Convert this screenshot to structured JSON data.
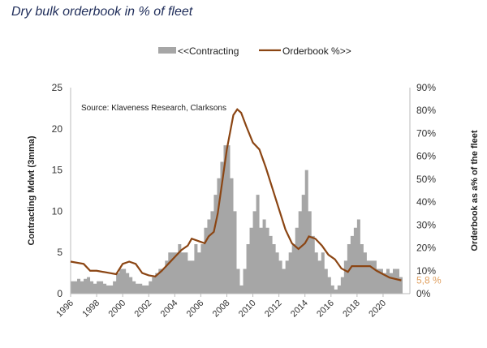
{
  "title": "Dry bulk orderbook in % of fleet",
  "chart_data": {
    "type": "area+line",
    "title": "Dry bulk orderbook in % of fleet",
    "source_note": "Source: Klaveness Research, Clarksons",
    "ylabel": "Contracting Mdwt (3mma)",
    "y2label": "Orderbook as  a% of the fleet",
    "ylim": [
      0,
      25
    ],
    "y2lim": [
      0,
      90
    ],
    "yticks": [
      "0",
      "5",
      "10",
      "15",
      "20",
      "25"
    ],
    "y2ticks": [
      "0%",
      "10%",
      "20%",
      "30%",
      "40%",
      "50%",
      "60%",
      "70%",
      "80%",
      "90%"
    ],
    "xticks": [
      "1996",
      "1998",
      "2000",
      "2002",
      "2004",
      "2006",
      "2008",
      "2010",
      "2012",
      "2014",
      "2016",
      "2018",
      "2020"
    ],
    "legend": {
      "position": "top",
      "entries": [
        "<<Contracting",
        "Orderbook %>>"
      ]
    },
    "end_label": "5,8 %",
    "colors": {
      "contracting": "#a6a6a6",
      "orderbook": "#8b4513",
      "end_label": "#e0a060",
      "title": "#1f2d5a"
    },
    "series": [
      {
        "name": "<<Contracting",
        "axis": "left",
        "x_start": 1996,
        "step_years": 0.25,
        "values": [
          1.5,
          1.5,
          1.8,
          1.5,
          1.8,
          2,
          1.5,
          1.2,
          1.5,
          1.5,
          1.2,
          1,
          1,
          1.5,
          2.5,
          3,
          3,
          2.5,
          2,
          1.5,
          1.2,
          1.2,
          1,
          1,
          1.5,
          2,
          2.5,
          3,
          3,
          4,
          5,
          5,
          5,
          6,
          5,
          5,
          4,
          4,
          6,
          5,
          6,
          8,
          9,
          10,
          12,
          14,
          16,
          18,
          18,
          14,
          10,
          3,
          1,
          3,
          6,
          8,
          10,
          12,
          8,
          9,
          8,
          7,
          6,
          5,
          4,
          3,
          4,
          5,
          6,
          8,
          10,
          12,
          15,
          10,
          7,
          5,
          4,
          5,
          3,
          2,
          1,
          0.5,
          1,
          2,
          4,
          6,
          7,
          8,
          9,
          6,
          5,
          4,
          4,
          4,
          3,
          3,
          2.5,
          3,
          2.5,
          3,
          3,
          2
        ]
      },
      {
        "name": "Orderbook %>>",
        "axis": "right",
        "x": [
          1996,
          1997,
          1997.5,
          1998,
          1999,
          1999.5,
          2000,
          2000.5,
          2001,
          2001.5,
          2002,
          2002.5,
          2003,
          2003.5,
          2004,
          2004.5,
          2005,
          2005.3,
          2005.8,
          2006.3,
          2006.6,
          2007,
          2007.3,
          2007.6,
          2008,
          2008.5,
          2008.8,
          2009.1,
          2009.5,
          2010,
          2010.5,
          2011,
          2011.5,
          2012,
          2012.5,
          2013,
          2013.5,
          2014,
          2014.3,
          2014.8,
          2015.3,
          2015.8,
          2016.3,
          2016.8,
          2017.3,
          2017.6,
          2018,
          2019,
          2019.5,
          2020,
          2020.5,
          2021.4
        ],
        "values": [
          14,
          13,
          10,
          10,
          9,
          8.5,
          13,
          14,
          13,
          9,
          8,
          7.5,
          10,
          13,
          16,
          19,
          21,
          24,
          23,
          22,
          25,
          27,
          35,
          47,
          63,
          78,
          80.5,
          79,
          73,
          66,
          63,
          55,
          46,
          37,
          28,
          22,
          19.5,
          22,
          25,
          24,
          21,
          17,
          15,
          11,
          9.5,
          12,
          12,
          12,
          10,
          8.5,
          7,
          5.8
        ]
      }
    ]
  }
}
